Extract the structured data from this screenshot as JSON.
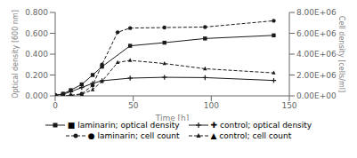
{
  "chart_data": {
    "type": "line",
    "xlabel": "Time [h]",
    "ylabel": "Optical density [600 nm]",
    "y2label": "Cell density [cells/ml]",
    "xlim": [
      0,
      150
    ],
    "xticks": [
      0,
      50,
      100,
      150
    ],
    "ylim": [
      0.0,
      0.8
    ],
    "yticks": [
      {
        "value": 0.0,
        "label": "0.000"
      },
      {
        "value": 0.2,
        "label": "0.200"
      },
      {
        "value": 0.4,
        "label": "0.400"
      },
      {
        "value": 0.6,
        "label": "0.600"
      },
      {
        "value": 0.8,
        "label": "0.800"
      }
    ],
    "y2lim": [
      0,
      8000000
    ],
    "y2ticks": [
      {
        "value": 0,
        "label": "0.00E+00"
      },
      {
        "value": 2000000,
        "label": "2.00E+06"
      },
      {
        "value": 4000000,
        "label": "4.00E+06"
      },
      {
        "value": 6000000,
        "label": "6.00E+06"
      },
      {
        "value": 8000000,
        "label": "8.00E+06"
      }
    ],
    "grid": false,
    "legend": "bottom",
    "series": [
      {
        "name": "■ laminarin; optical density",
        "color": "#1a1a1a",
        "marker": "square",
        "line_style": "solid",
        "x": [
          0,
          5,
          10,
          17,
          24,
          30,
          48,
          70,
          96,
          140
        ],
        "values": [
          0.005,
          0.02,
          0.055,
          0.11,
          0.2,
          0.28,
          0.48,
          0.51,
          0.55,
          0.58
        ]
      },
      {
        "name": "✚ control; optical density",
        "color": "#1a1a1a",
        "marker": "plus",
        "line_style": "solid",
        "x": [
          0,
          5,
          10,
          17,
          24,
          30,
          48,
          70,
          96,
          140
        ],
        "values": [
          0.005,
          0.015,
          0.04,
          0.08,
          0.12,
          0.145,
          0.17,
          0.178,
          0.175,
          0.148
        ]
      },
      {
        "name": "● laminarin; cell count",
        "color": "#1a1a1a",
        "marker": "circle",
        "line_style": "dashed",
        "axis": "y2",
        "x": [
          0,
          5,
          10,
          17,
          24,
          30,
          40,
          48,
          70,
          96,
          140
        ],
        "values": [
          0,
          10000,
          40000,
          200000,
          1000000,
          3000000,
          6100000,
          6500000,
          6550000,
          6600000,
          7200000
        ]
      },
      {
        "name": "▲ control; cell count",
        "color": "#1a1a1a",
        "marker": "triangle",
        "line_style": "dashed",
        "axis": "y2",
        "x": [
          0,
          5,
          10,
          17,
          24,
          30,
          40,
          48,
          70,
          96,
          140
        ],
        "values": [
          0,
          10000,
          30000,
          150000,
          600000,
          1400000,
          3200000,
          3400000,
          3100000,
          2600000,
          2200000
        ]
      }
    ]
  }
}
